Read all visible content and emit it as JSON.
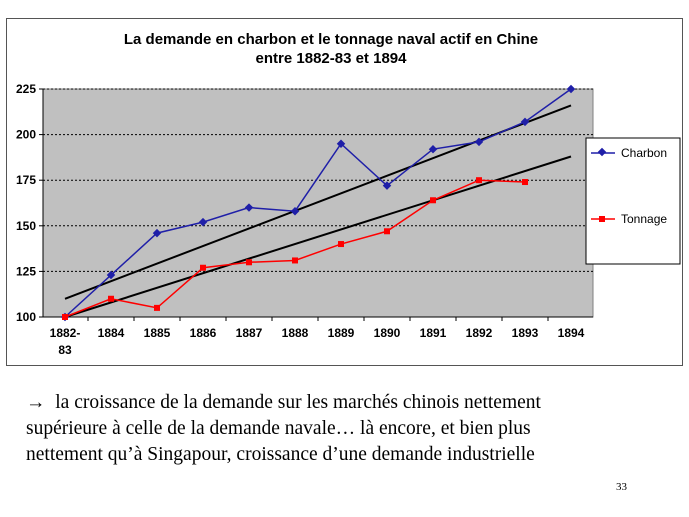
{
  "chart_data": {
    "type": "line",
    "title": [
      "La demande en charbon et le tonnage naval actif en Chine",
      "entre 1882-83 et 1894"
    ],
    "categories": [
      "1882-83",
      "1884",
      "1885",
      "1886",
      "1887",
      "1888",
      "1889",
      "1890",
      "1891",
      "1892",
      "1893",
      "1894"
    ],
    "ylim": [
      100,
      225
    ],
    "yticks": [
      100,
      125,
      150,
      175,
      200,
      225
    ],
    "grid": true,
    "legend_position": "right",
    "series": [
      {
        "name": "Charbon",
        "color": "#1f1fa8",
        "marker": "diamond",
        "values": [
          100,
          123,
          146,
          152,
          160,
          158,
          195,
          172,
          192,
          196,
          207,
          225
        ]
      },
      {
        "name": "Tonnage",
        "color": "#ff0000",
        "marker": "square",
        "values": [
          100,
          110,
          105,
          127,
          130,
          131,
          140,
          147,
          164,
          175,
          174,
          null
        ]
      }
    ],
    "trendlines": [
      {
        "series": "Charbon",
        "color": "#000000",
        "start": [
          0,
          110
        ],
        "end": [
          11,
          216
        ]
      },
      {
        "series": "Tonnage",
        "color": "#000000",
        "start": [
          0,
          100
        ],
        "end": [
          11,
          188
        ]
      }
    ]
  },
  "caption": {
    "arrow": "→",
    "lines": [
      "la croissance de la demande sur les marchés chinois nettement",
      "supérieure à celle de la demande navale… là encore, et bien plus",
      "nettement qu’à Singapour, croissance d’une demande industrielle"
    ]
  },
  "page_number": "33"
}
